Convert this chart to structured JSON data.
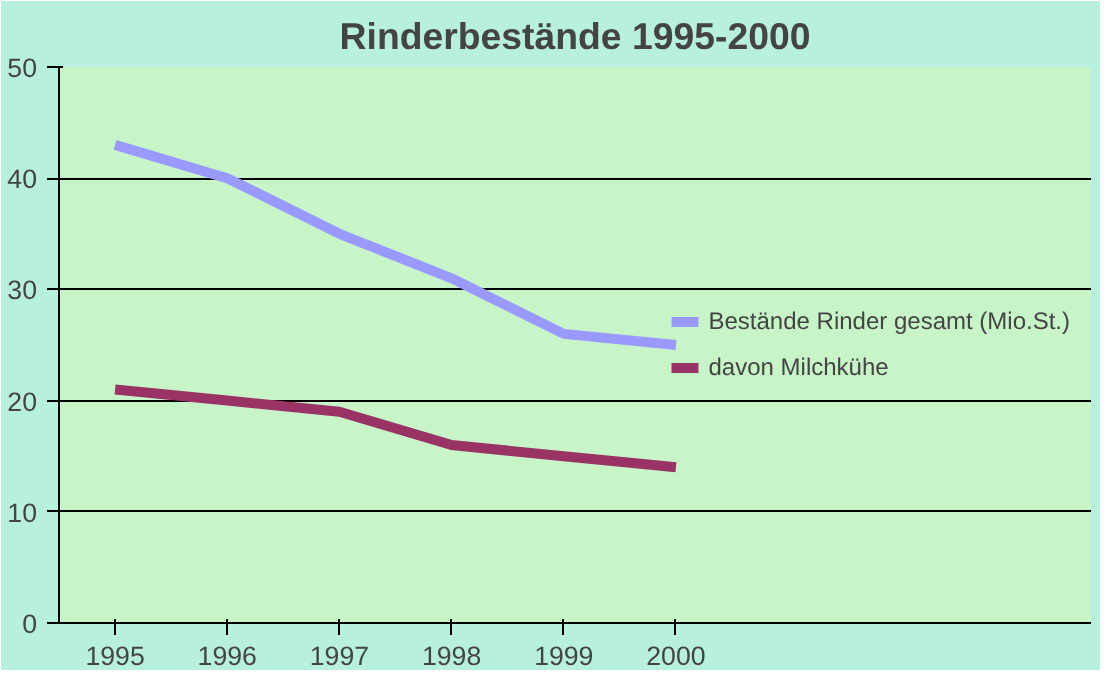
{
  "chart_data": {
    "type": "line",
    "title": "Rinderbestände 1995-2000",
    "categories": [
      "1995",
      "1996",
      "1997",
      "1998",
      "1999",
      "2000"
    ],
    "series": [
      {
        "name": "Bestände Rinder gesamt (Mio.St.)",
        "color": "#9999ff",
        "values": [
          43,
          40,
          35,
          31,
          26,
          25
        ]
      },
      {
        "name": "davon Milchkühe",
        "color": "#993366",
        "values": [
          21,
          20,
          19,
          16,
          15,
          14
        ]
      }
    ],
    "ylim": [
      0,
      50
    ],
    "yticks": [
      0,
      10,
      20,
      30,
      40,
      50
    ],
    "grid": "y",
    "legend": "right",
    "marker": "none",
    "line_style": "solid"
  }
}
